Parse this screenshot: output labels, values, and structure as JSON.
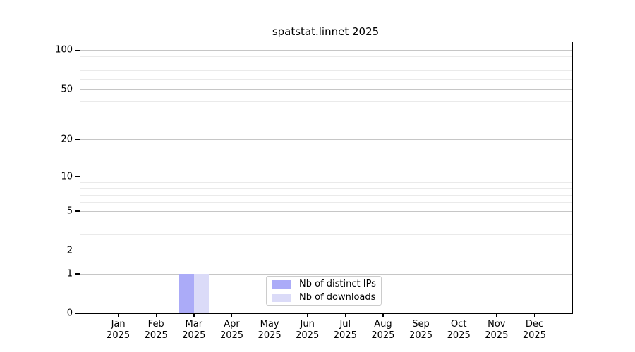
{
  "chart_data": {
    "type": "bar",
    "title": "spatstat.linnet 2025",
    "categories": [
      "Jan",
      "Feb",
      "Mar",
      "Apr",
      "May",
      "Jun",
      "Jul",
      "Aug",
      "Sep",
      "Oct",
      "Nov",
      "Dec"
    ],
    "x_year_label": "2025",
    "series": [
      {
        "key": "distinct-ips",
        "name": "Nb of distinct IPs",
        "color": "#ababf8",
        "values": [
          0,
          0,
          1,
          0,
          0,
          0,
          0,
          0,
          0,
          0,
          0,
          0
        ]
      },
      {
        "key": "downloads",
        "name": "Nb of downloads",
        "color": "#dbdbf8",
        "values": [
          0,
          0,
          1,
          0,
          0,
          0,
          0,
          0,
          0,
          0,
          0,
          0
        ]
      }
    ],
    "yscale": "log1p",
    "ylim": [
      0,
      115
    ],
    "yticks_major": [
      0,
      1,
      2,
      5,
      10,
      20,
      50,
      100
    ],
    "yticks_minor": [
      3,
      4,
      6,
      7,
      8,
      9,
      30,
      40,
      60,
      70,
      80,
      90
    ],
    "bar_width_frac": 0.4,
    "grid": true,
    "legend_position": "lower center",
    "colors": {
      "grid_major": "#c6c6c6",
      "grid_minor": "#eaeaea",
      "spine": "#000000",
      "background": "#ffffff"
    }
  }
}
